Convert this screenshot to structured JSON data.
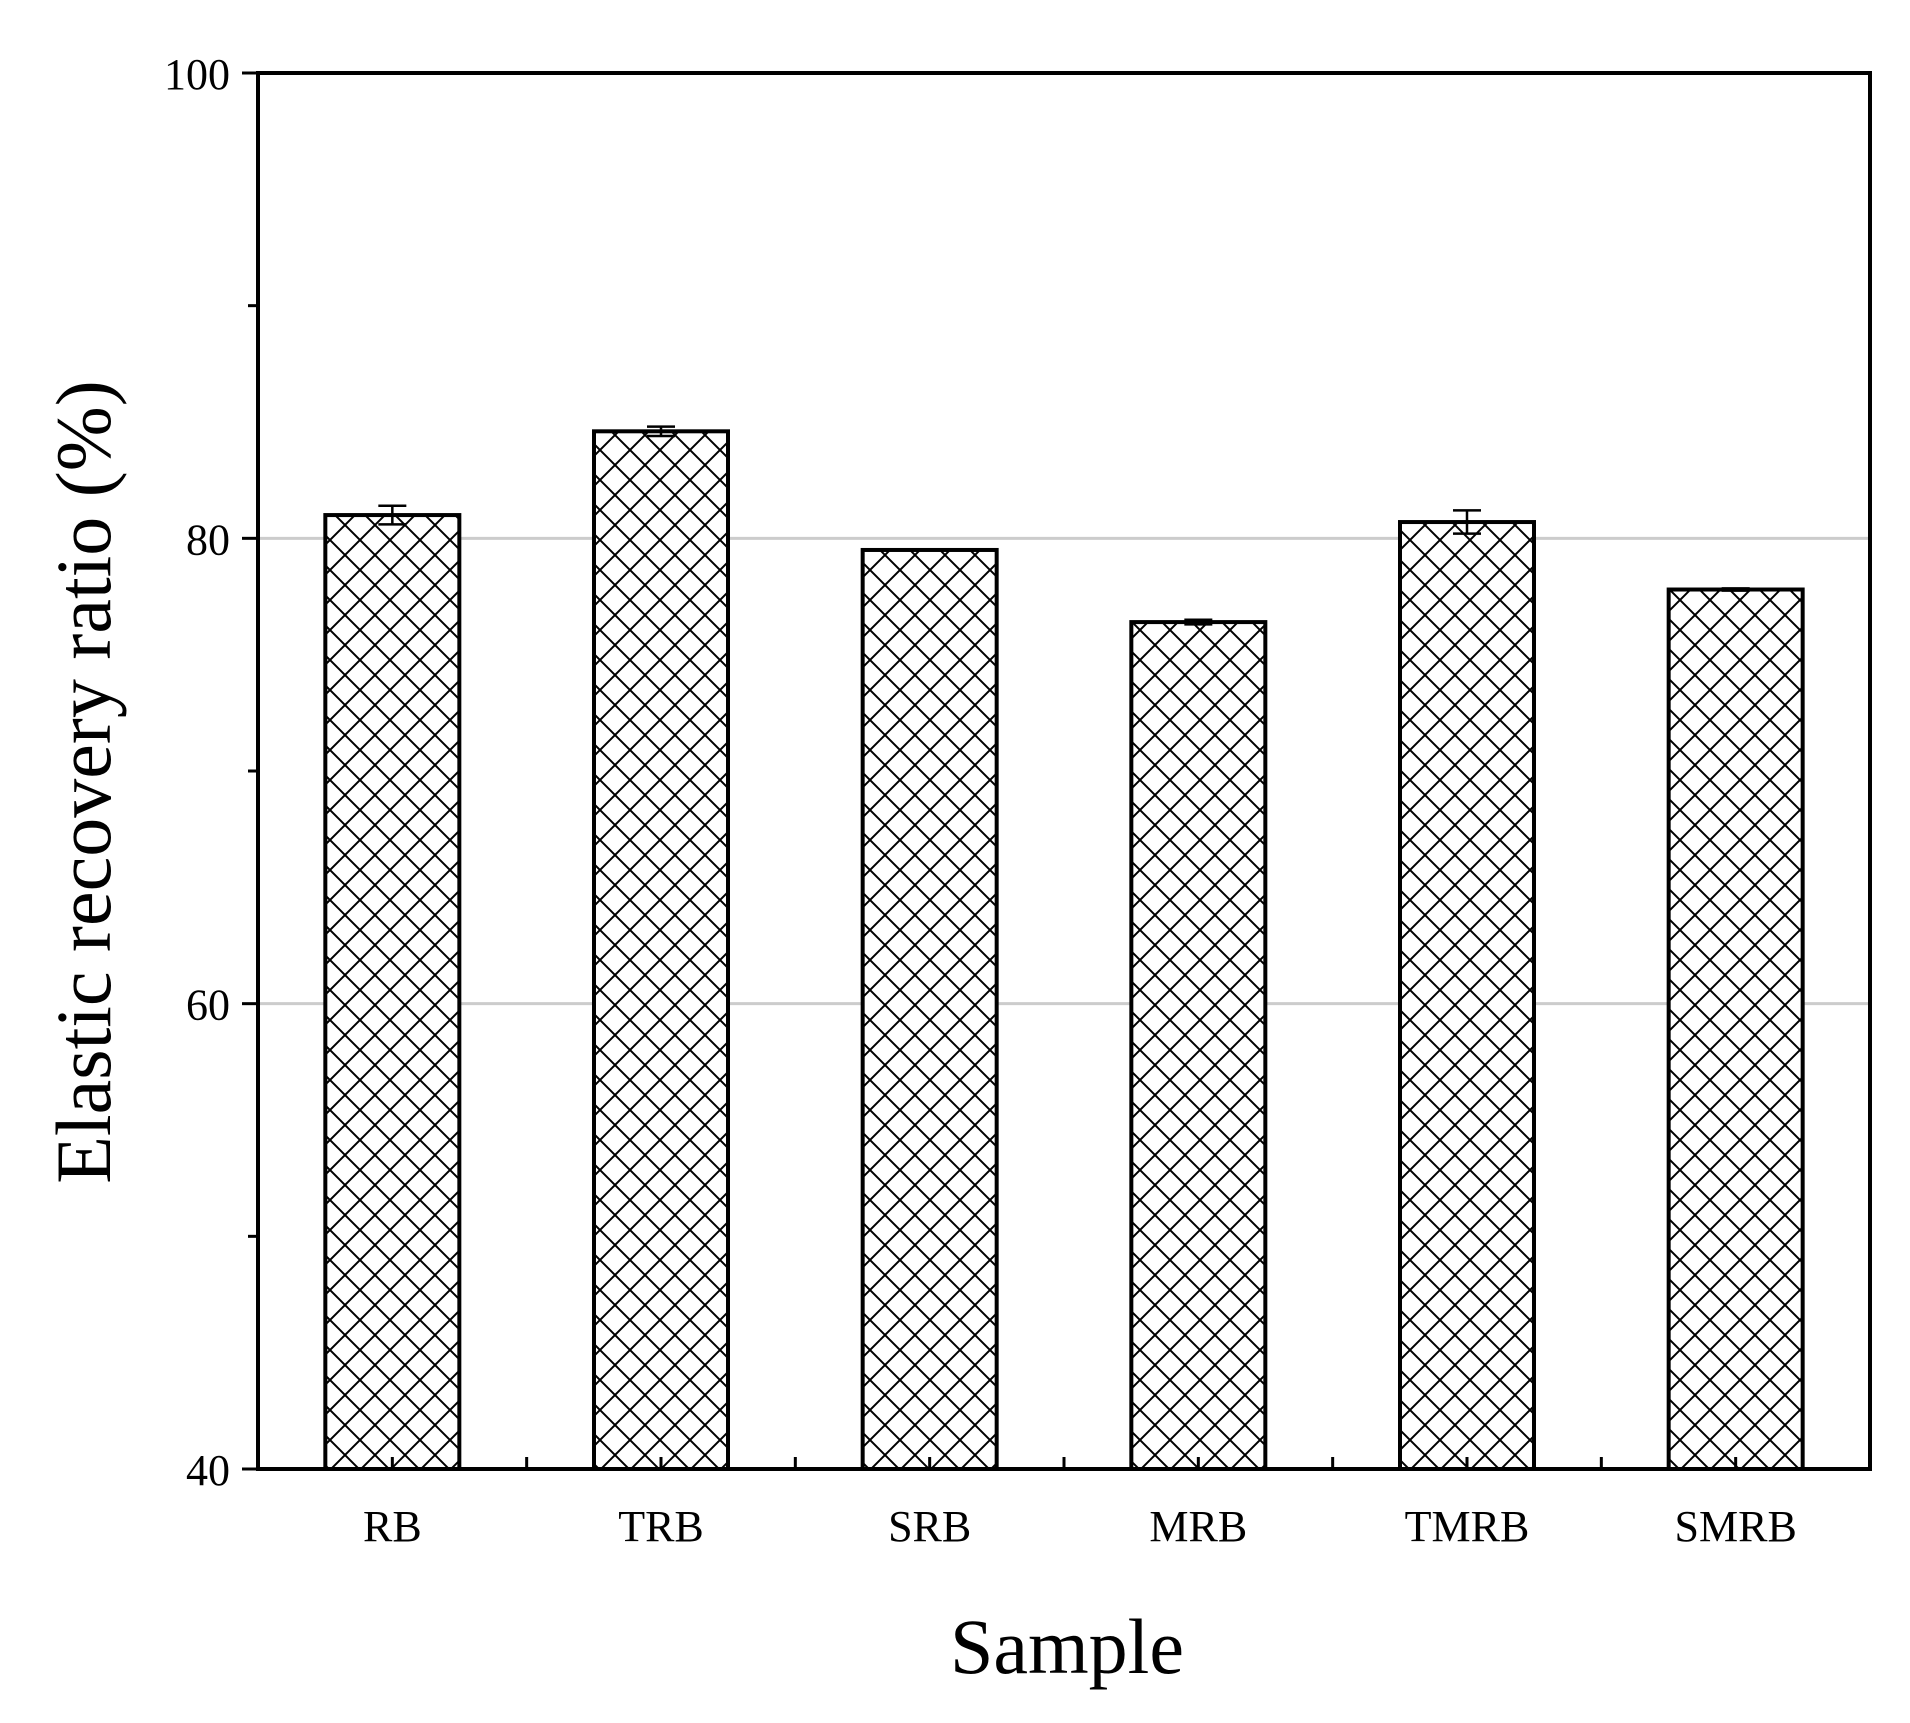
{
  "chart_data": {
    "type": "bar",
    "title": "",
    "xlabel": "Sample",
    "ylabel": "Elastic recovery ratio (%)",
    "categories": [
      "RB",
      "TRB",
      "SRB",
      "MRB",
      "TMRB",
      "SMRB"
    ],
    "values": [
      81.0,
      84.6,
      79.5,
      76.4,
      80.7,
      77.8
    ],
    "errors": [
      0.4,
      0.2,
      0.0,
      0.1,
      0.5,
      0.05
    ],
    "ylim": [
      40,
      100
    ],
    "yticks": [
      "40",
      "60",
      "80",
      "100"
    ],
    "grid": true,
    "bar_pattern": "crosshatch",
    "colors": {
      "bar_fill": "#ffffff",
      "bar_stroke": "#000000",
      "grid": "#cccccc"
    }
  }
}
